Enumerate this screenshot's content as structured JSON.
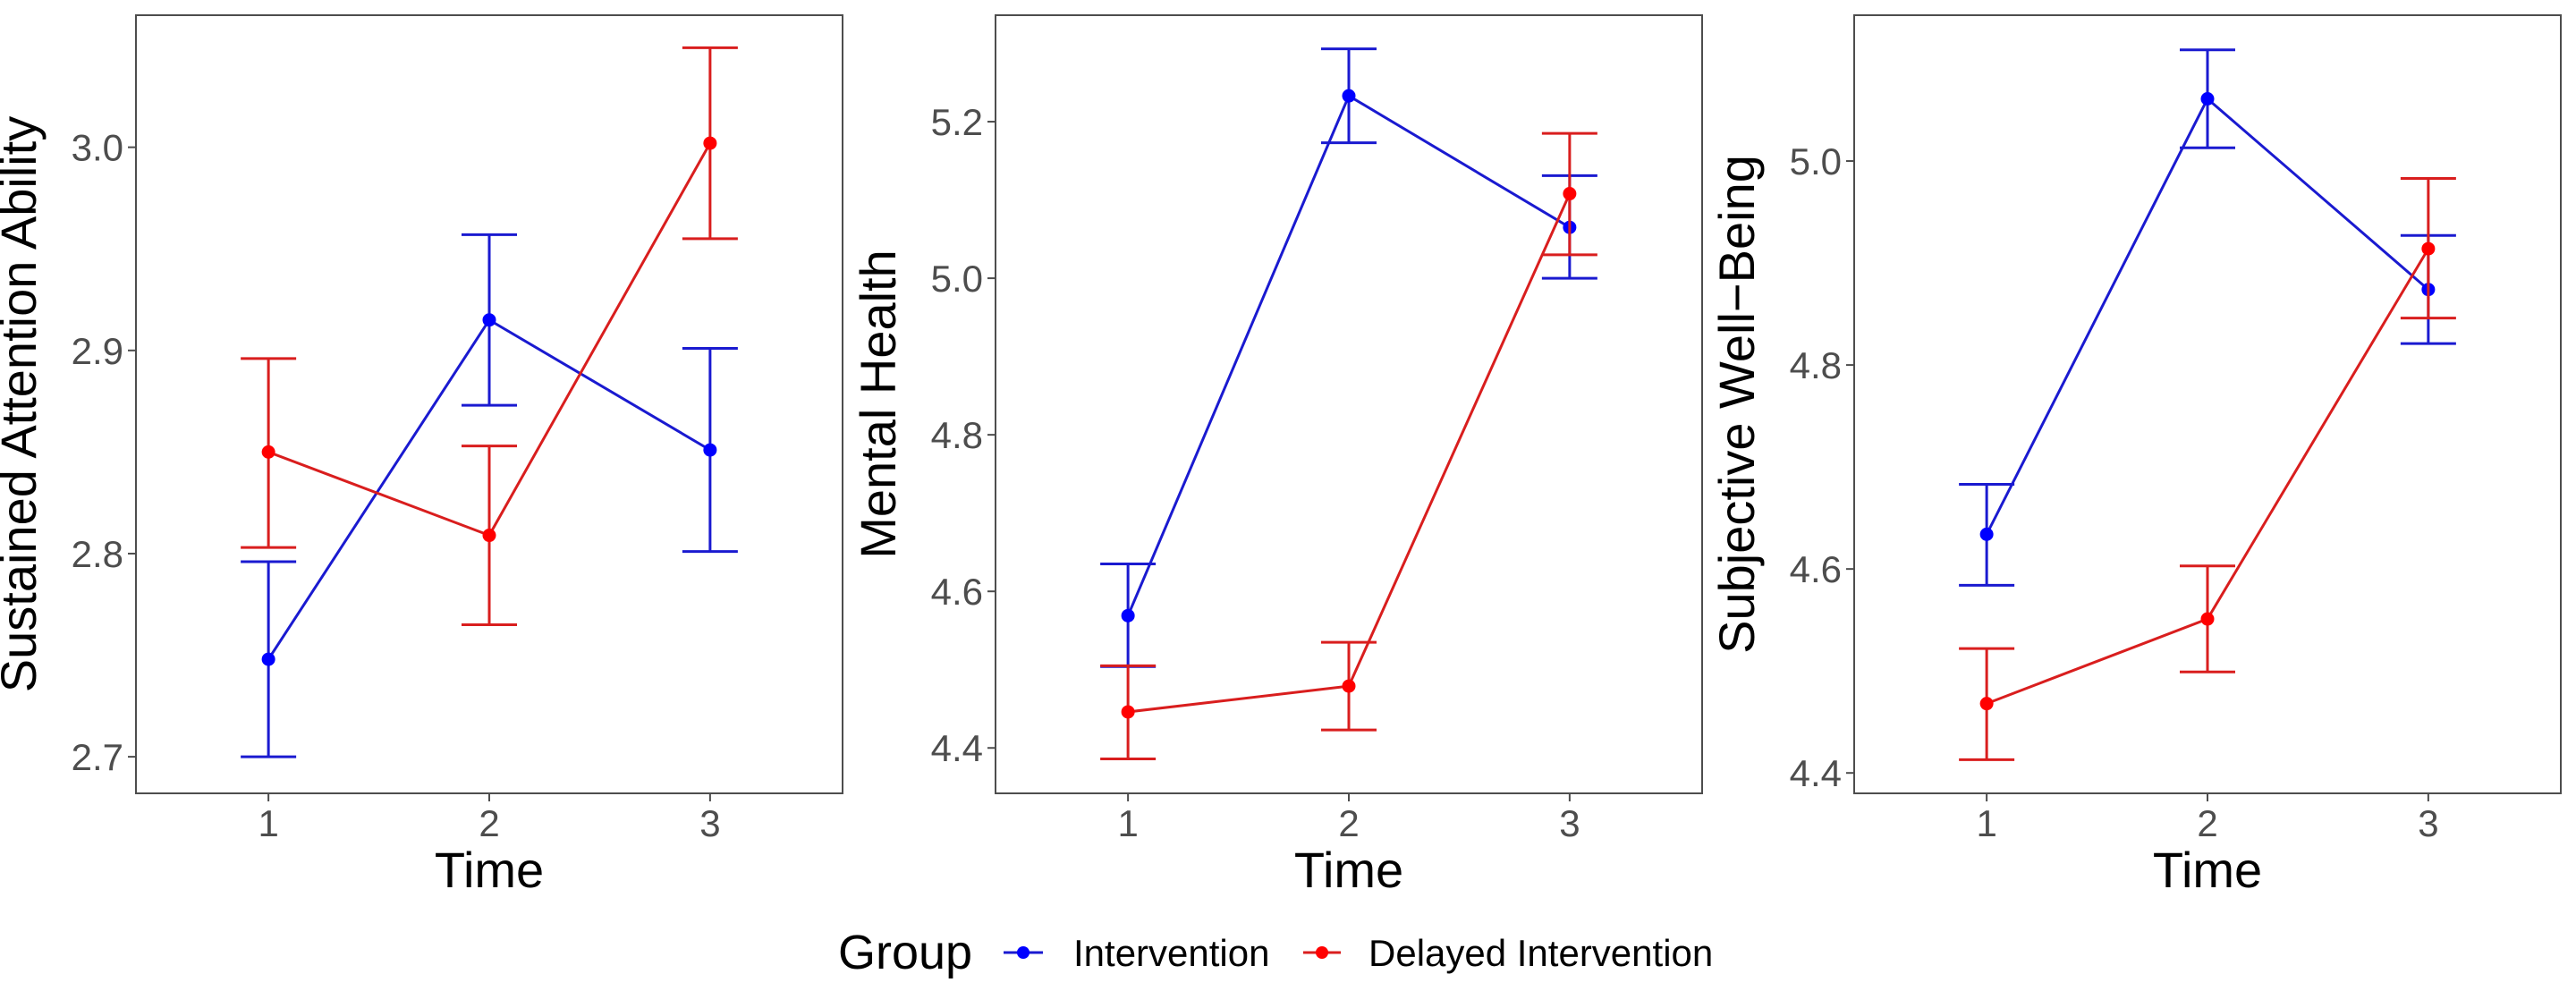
{
  "chart_data": {
    "type": "line",
    "legend": {
      "title": "Group",
      "position": "bottom",
      "entries": [
        {
          "name": "Intervention",
          "color": "#1a1ad0",
          "point_color": "#0000ff"
        },
        {
          "name": "Delayed Intervention",
          "color": "#d91e1e",
          "point_color": "#ff0000"
        }
      ]
    },
    "panels": [
      {
        "ylabel": "Sustained Attention Ability",
        "xlabel": "Time",
        "x": [
          1,
          2,
          3
        ],
        "xticks": [
          "1",
          "2",
          "3"
        ],
        "xlim": [
          0.4,
          3.6
        ],
        "ylim": [
          2.682,
          3.065
        ],
        "yticks": [
          "2.7",
          "2.8",
          "2.9",
          "3.0"
        ],
        "ytick_values": [
          2.7,
          2.8,
          2.9,
          3.0
        ],
        "grid": false,
        "series": [
          {
            "name": "Intervention",
            "values": [
              2.748,
              2.915,
              2.851
            ],
            "lower": [
              2.7,
              2.873,
              2.801
            ],
            "upper": [
              2.796,
              2.957,
              2.901
            ]
          },
          {
            "name": "Delayed Intervention",
            "values": [
              2.85,
              2.809,
              3.002
            ],
            "lower": [
              2.803,
              2.765,
              2.955
            ],
            "upper": [
              2.896,
              2.853,
              3.049
            ]
          }
        ]
      },
      {
        "ylabel": "Mental Health",
        "xlabel": "Time",
        "x": [
          1,
          2,
          3
        ],
        "xticks": [
          "1",
          "2",
          "3"
        ],
        "xlim": [
          0.4,
          3.6
        ],
        "ylim": [
          4.342,
          5.336
        ],
        "yticks": [
          "4.4",
          "4.6",
          "4.8",
          "5.0",
          "5.2"
        ],
        "ytick_values": [
          4.4,
          4.6,
          4.8,
          5.0,
          5.2
        ],
        "grid": false,
        "series": [
          {
            "name": "Intervention",
            "values": [
              4.569,
              5.233,
              5.065
            ],
            "lower": [
              4.504,
              5.173,
              5.0
            ],
            "upper": [
              4.635,
              5.293,
              5.131
            ]
          },
          {
            "name": "Delayed Intervention",
            "values": [
              4.446,
              4.479,
              5.108
            ],
            "lower": [
              4.386,
              4.423,
              5.03
            ],
            "upper": [
              4.505,
              4.535,
              5.185
            ]
          }
        ]
      },
      {
        "ylabel": "Subjective Well−Being",
        "xlabel": "Time",
        "x": [
          1,
          2,
          3
        ],
        "xticks": [
          "1",
          "2",
          "3"
        ],
        "xlim": [
          0.4,
          3.6
        ],
        "ylim": [
          4.38,
          5.143
        ],
        "yticks": [
          "4.4",
          "4.6",
          "4.8",
          "5.0"
        ],
        "ytick_values": [
          4.4,
          4.6,
          4.8,
          5.0
        ],
        "grid": false,
        "series": [
          {
            "name": "Intervention",
            "values": [
              4.634,
              5.061,
              4.874
            ],
            "lower": [
              4.584,
              5.013,
              4.821
            ],
            "upper": [
              4.683,
              5.109,
              4.927
            ]
          },
          {
            "name": "Delayed Intervention",
            "values": [
              4.468,
              4.551,
              4.914
            ],
            "lower": [
              4.413,
              4.499,
              4.846
            ],
            "upper": [
              4.522,
              4.603,
              4.983
            ]
          }
        ]
      }
    ]
  }
}
